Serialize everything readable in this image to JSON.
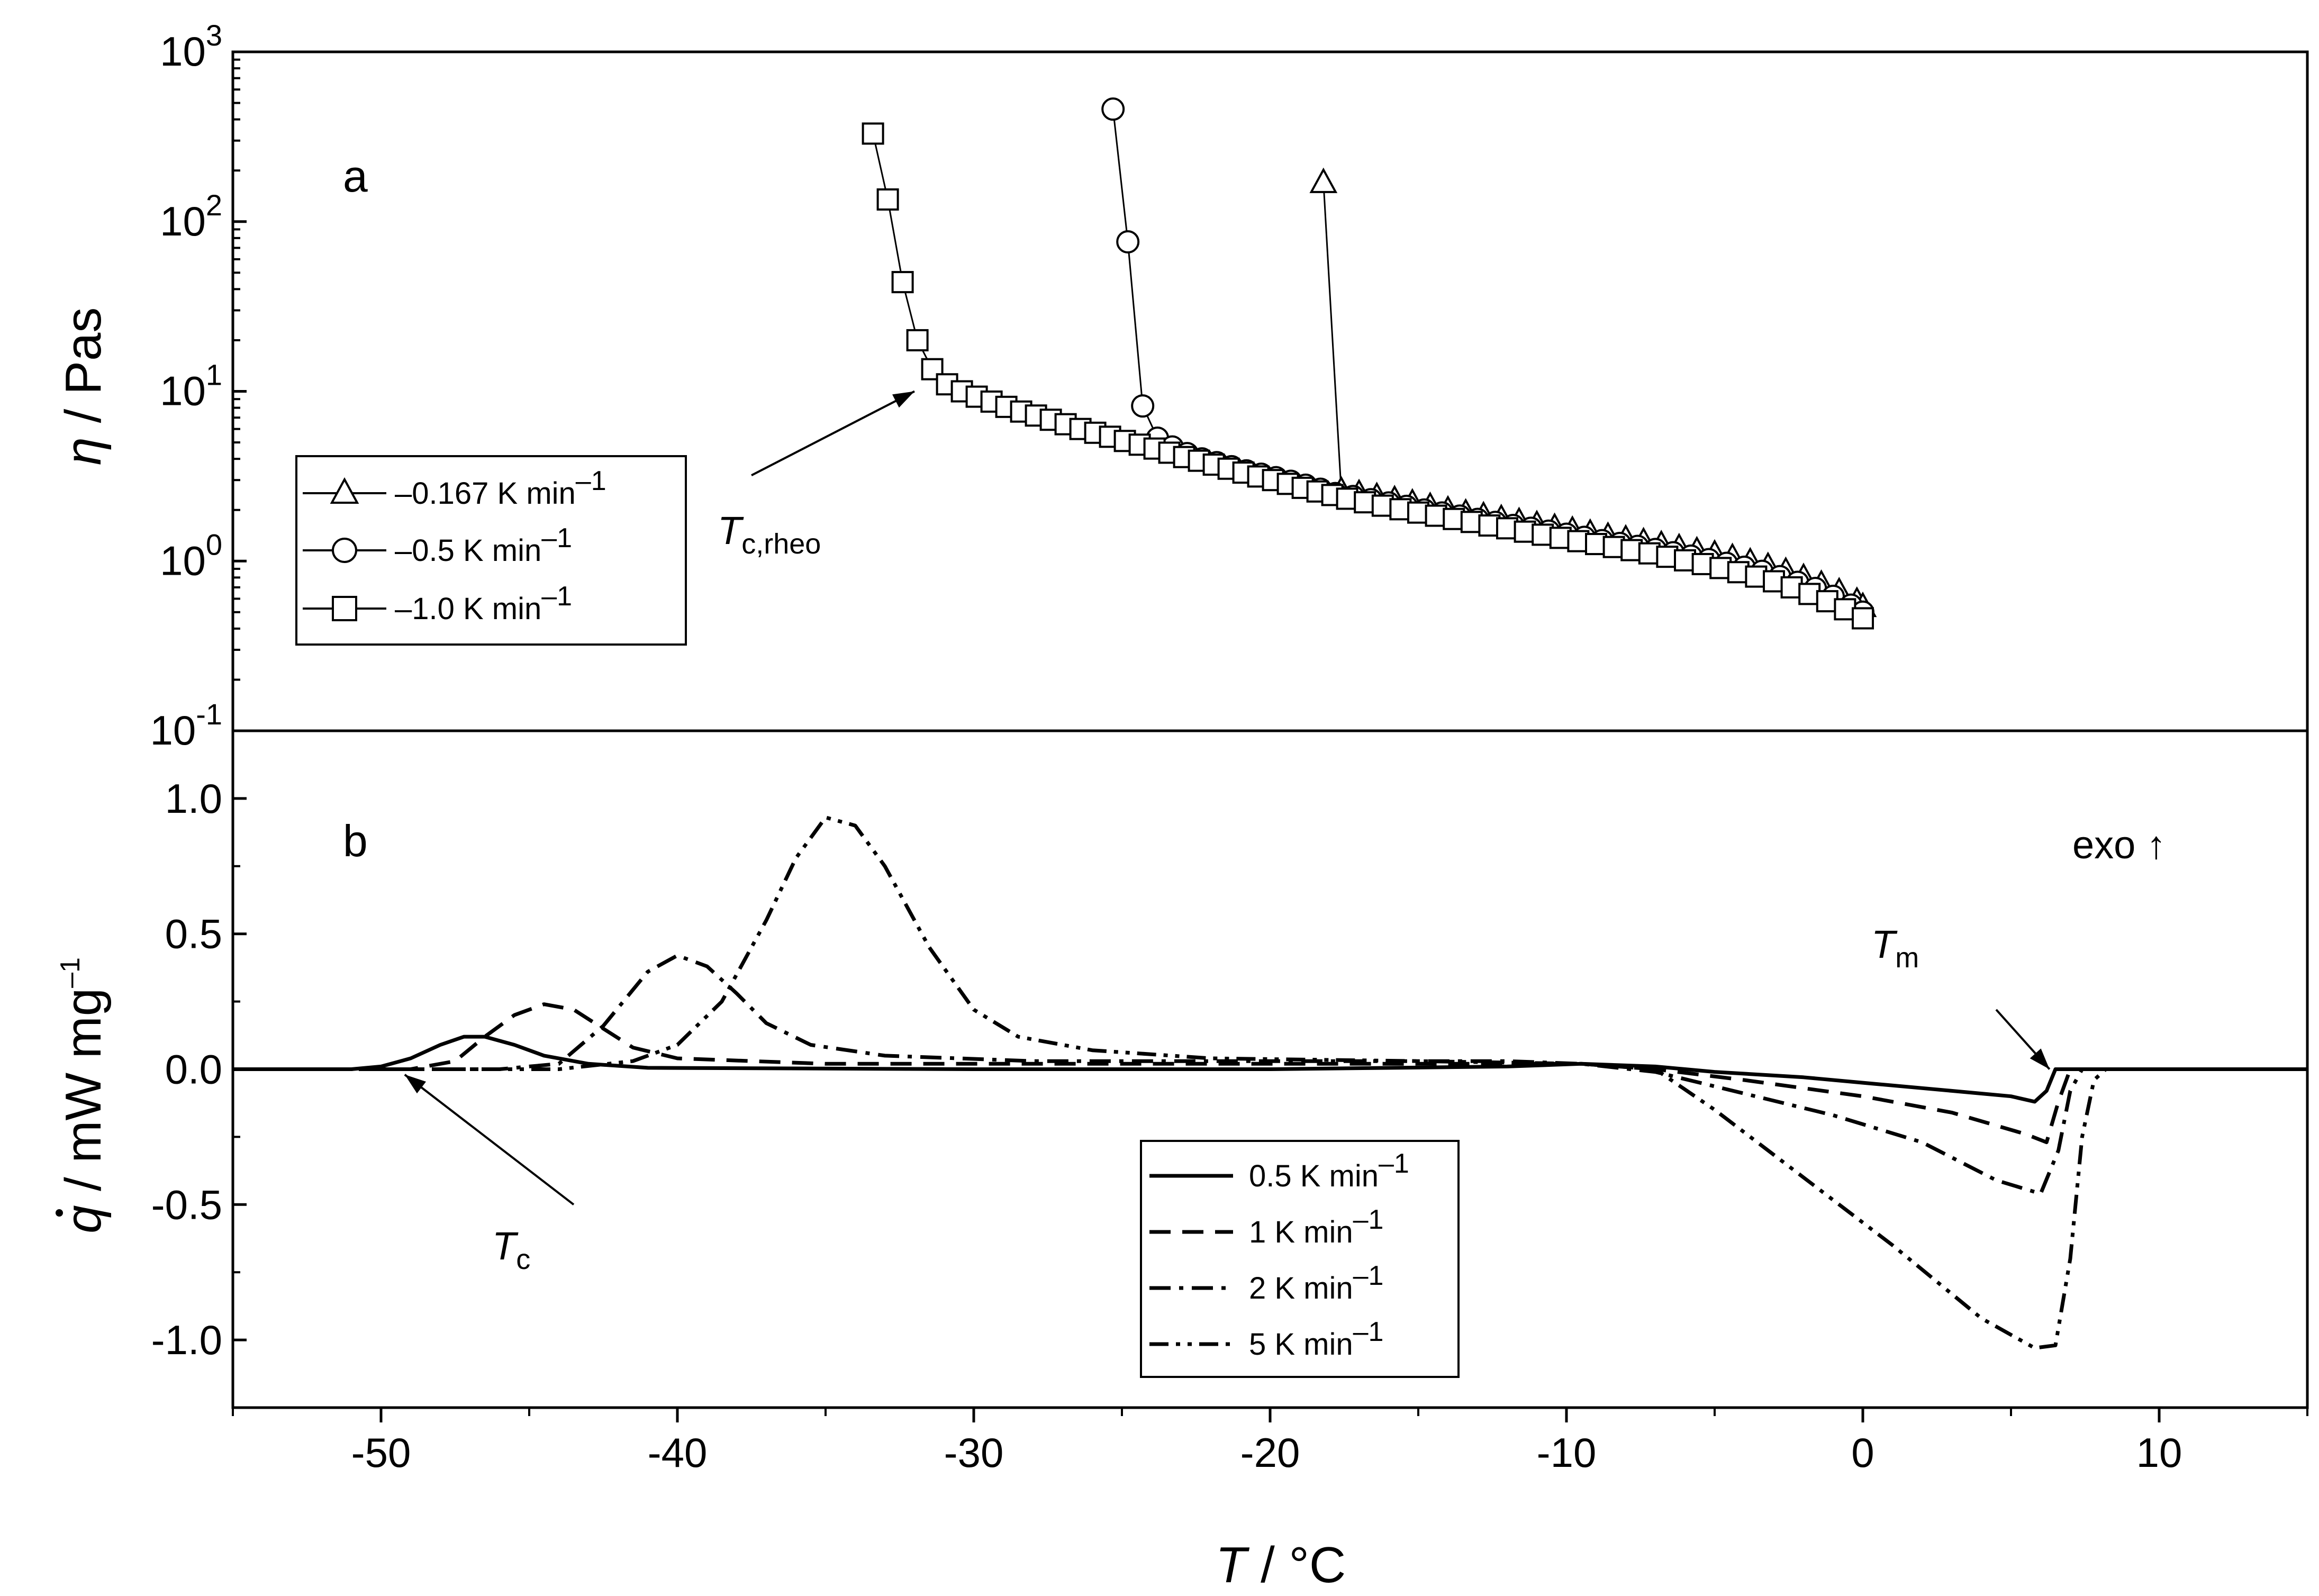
{
  "chart_data": [
    {
      "id": "a",
      "type": "scatter",
      "panel_label": "a",
      "ylabel_symbol": "η",
      "ylabel_unit": " / Pas",
      "yscale": "log",
      "ylim": [
        0.1,
        1000
      ],
      "xlim": [
        -55,
        15
      ],
      "y_ticks": [
        {
          "base": "10",
          "exp": "-1",
          "value": 0.1
        },
        {
          "base": "10",
          "exp": "0",
          "value": 1
        },
        {
          "base": "10",
          "exp": "1",
          "value": 10
        },
        {
          "base": "10",
          "exp": "2",
          "value": 100
        },
        {
          "base": "10",
          "exp": "3",
          "value": 1000
        }
      ],
      "annotations": [
        {
          "text": "T",
          "subscript": "c,rheo",
          "arrow_from": [
            -37.5,
            3.2
          ],
          "arrow_to": [
            -32.0,
            10.0
          ]
        }
      ],
      "series": [
        {
          "name": "–0.167 K min",
          "unit_exp": "–1",
          "marker": "triangle",
          "points": [
            [
              -18.2,
              170
            ],
            [
              -17.6,
              2.6
            ],
            [
              -17.0,
              2.5
            ],
            [
              -16.4,
              2.4
            ],
            [
              -15.8,
              2.3
            ],
            [
              -15.2,
              2.2
            ],
            [
              -14.6,
              2.1
            ],
            [
              -14.0,
              2.0
            ],
            [
              -13.4,
              1.92
            ],
            [
              -12.8,
              1.85
            ],
            [
              -12.2,
              1.78
            ],
            [
              -11.6,
              1.71
            ],
            [
              -11.0,
              1.64
            ],
            [
              -10.4,
              1.58
            ],
            [
              -9.8,
              1.52
            ],
            [
              -9.2,
              1.46
            ],
            [
              -8.6,
              1.4
            ],
            [
              -8.0,
              1.35
            ],
            [
              -7.4,
              1.3
            ],
            [
              -6.8,
              1.25
            ],
            [
              -6.2,
              1.2
            ],
            [
              -5.6,
              1.15
            ],
            [
              -5.0,
              1.1
            ],
            [
              -4.4,
              1.05
            ],
            [
              -3.8,
              0.99
            ],
            [
              -3.2,
              0.93
            ],
            [
              -2.6,
              0.87
            ],
            [
              -2.0,
              0.8
            ],
            [
              -1.4,
              0.73
            ],
            [
              -0.8,
              0.66
            ],
            [
              -0.2,
              0.58
            ],
            [
              0.0,
              0.54
            ]
          ]
        },
        {
          "name": "–0.5 K min",
          "unit_exp": "–1",
          "marker": "circle",
          "points": [
            [
              -25.3,
              460
            ],
            [
              -24.8,
              76
            ],
            [
              -24.3,
              8.2
            ],
            [
              -23.8,
              5.3
            ],
            [
              -23.3,
              4.7
            ],
            [
              -22.8,
              4.3
            ],
            [
              -22.3,
              4.0
            ],
            [
              -21.8,
              3.8
            ],
            [
              -21.3,
              3.6
            ],
            [
              -20.8,
              3.4
            ],
            [
              -20.3,
              3.25
            ],
            [
              -19.8,
              3.1
            ],
            [
              -19.3,
              2.95
            ],
            [
              -18.8,
              2.8
            ],
            [
              -18.3,
              2.65
            ],
            [
              -17.8,
              2.5
            ],
            [
              -17.2,
              2.4
            ],
            [
              -16.6,
              2.3
            ],
            [
              -16.0,
              2.2
            ],
            [
              -15.4,
              2.1
            ],
            [
              -14.8,
              2.0
            ],
            [
              -14.2,
              1.92
            ],
            [
              -13.6,
              1.84
            ],
            [
              -13.0,
              1.76
            ],
            [
              -12.4,
              1.69
            ],
            [
              -11.8,
              1.62
            ],
            [
              -11.2,
              1.56
            ],
            [
              -10.6,
              1.5
            ],
            [
              -10.0,
              1.44
            ],
            [
              -9.4,
              1.38
            ],
            [
              -8.8,
              1.32
            ],
            [
              -8.2,
              1.27
            ],
            [
              -7.6,
              1.22
            ],
            [
              -7.0,
              1.17
            ],
            [
              -6.4,
              1.12
            ],
            [
              -5.8,
              1.07
            ],
            [
              -5.2,
              1.02
            ],
            [
              -4.6,
              0.97
            ],
            [
              -4.0,
              0.92
            ],
            [
              -3.4,
              0.87
            ],
            [
              -2.8,
              0.81
            ],
            [
              -2.2,
              0.75
            ],
            [
              -1.6,
              0.69
            ],
            [
              -1.0,
              0.62
            ],
            [
              -0.4,
              0.55
            ],
            [
              0.0,
              0.5
            ]
          ]
        },
        {
          "name": "–1.0 K min",
          "unit_exp": "–1",
          "marker": "square",
          "points": [
            [
              -33.4,
              330
            ],
            [
              -32.9,
              135
            ],
            [
              -32.4,
              44
            ],
            [
              -31.9,
              20
            ],
            [
              -31.4,
              13.5
            ],
            [
              -30.9,
              11.0
            ],
            [
              -30.4,
              10.0
            ],
            [
              -29.9,
              9.3
            ],
            [
              -29.4,
              8.7
            ],
            [
              -28.9,
              8.1
            ],
            [
              -28.4,
              7.6
            ],
            [
              -27.9,
              7.2
            ],
            [
              -27.4,
              6.8
            ],
            [
              -26.9,
              6.4
            ],
            [
              -26.4,
              6.0
            ],
            [
              -25.9,
              5.7
            ],
            [
              -25.4,
              5.4
            ],
            [
              -24.9,
              5.1
            ],
            [
              -24.4,
              4.85
            ],
            [
              -23.9,
              4.6
            ],
            [
              -23.4,
              4.35
            ],
            [
              -22.9,
              4.1
            ],
            [
              -22.4,
              3.9
            ],
            [
              -21.9,
              3.7
            ],
            [
              -21.4,
              3.5
            ],
            [
              -20.9,
              3.32
            ],
            [
              -20.4,
              3.15
            ],
            [
              -19.9,
              3.0
            ],
            [
              -19.4,
              2.85
            ],
            [
              -18.9,
              2.7
            ],
            [
              -18.4,
              2.57
            ],
            [
              -17.9,
              2.45
            ],
            [
              -17.4,
              2.33
            ],
            [
              -16.8,
              2.22
            ],
            [
              -16.2,
              2.12
            ],
            [
              -15.6,
              2.02
            ],
            [
              -15.0,
              1.93
            ],
            [
              -14.4,
              1.85
            ],
            [
              -13.8,
              1.77
            ],
            [
              -13.2,
              1.7
            ],
            [
              -12.6,
              1.62
            ],
            [
              -12.0,
              1.56
            ],
            [
              -11.4,
              1.49
            ],
            [
              -10.8,
              1.43
            ],
            [
              -10.2,
              1.37
            ],
            [
              -9.6,
              1.31
            ],
            [
              -9.0,
              1.26
            ],
            [
              -8.4,
              1.21
            ],
            [
              -7.8,
              1.16
            ],
            [
              -7.2,
              1.11
            ],
            [
              -6.6,
              1.06
            ],
            [
              -6.0,
              1.01
            ],
            [
              -5.4,
              0.96
            ],
            [
              -4.8,
              0.91
            ],
            [
              -4.2,
              0.86
            ],
            [
              -3.6,
              0.81
            ],
            [
              -3.0,
              0.76
            ],
            [
              -2.4,
              0.7
            ],
            [
              -1.8,
              0.64
            ],
            [
              -1.2,
              0.58
            ],
            [
              -0.6,
              0.52
            ],
            [
              0.0,
              0.46
            ]
          ]
        }
      ]
    },
    {
      "id": "b",
      "type": "line",
      "panel_label": "b",
      "ylabel_symbol": "q",
      "ylabel_unit": " / mW mg",
      "ylabel_exp": "–1",
      "ylim": [
        -1.25,
        1.25
      ],
      "xlim": [
        -55,
        15
      ],
      "xlabel_symbol": "T",
      "xlabel_unit": " / °C",
      "x_ticks": [
        "-50",
        "-40",
        "-30",
        "-20",
        "-10",
        "0",
        "10"
      ],
      "x_tick_values": [
        -50,
        -40,
        -30,
        -20,
        -10,
        0,
        10
      ],
      "y_ticks": [
        "-1.0",
        "-0.5",
        "0.0",
        "0.5",
        "1.0"
      ],
      "y_tick_values": [
        -1.0,
        -0.5,
        0.0,
        0.5,
        1.0
      ],
      "annotations": [
        {
          "text": "exo ↑"
        },
        {
          "text": "T",
          "subscript": "m",
          "arrow_from": [
            4.5,
            0.22
          ],
          "arrow_to": [
            6.3,
            0.0
          ]
        },
        {
          "text": "T",
          "subscript": "c",
          "arrow_from": [
            -43.5,
            -0.5
          ],
          "arrow_to": [
            -49.2,
            -0.02
          ]
        }
      ],
      "series": [
        {
          "name": "0.5 K min",
          "unit_exp": "–1",
          "dash": "solid",
          "points": [
            [
              -55,
              0
            ],
            [
              -51,
              0.0
            ],
            [
              -50,
              0.01
            ],
            [
              -49,
              0.04
            ],
            [
              -48,
              0.09
            ],
            [
              -47.2,
              0.12
            ],
            [
              -46.5,
              0.12
            ],
            [
              -45.5,
              0.09
            ],
            [
              -44.5,
              0.05
            ],
            [
              -43,
              0.02
            ],
            [
              -41,
              0.005
            ],
            [
              -30,
              0.0
            ],
            [
              -20,
              0.0
            ],
            [
              -12,
              0.01
            ],
            [
              -9.5,
              0.02
            ],
            [
              -7,
              0.01
            ],
            [
              -5,
              -0.01
            ],
            [
              -2,
              -0.03
            ],
            [
              0,
              -0.05
            ],
            [
              3,
              -0.08
            ],
            [
              5,
              -0.1
            ],
            [
              5.8,
              -0.12
            ],
            [
              6.2,
              -0.08
            ],
            [
              6.5,
              0.0
            ],
            [
              15,
              0.0
            ]
          ]
        },
        {
          "name": "1 K min",
          "unit_exp": "–1",
          "dash": "dash",
          "points": [
            [
              -55,
              0
            ],
            [
              -49,
              0.0
            ],
            [
              -47.5,
              0.03
            ],
            [
              -46.5,
              0.12
            ],
            [
              -45.5,
              0.2
            ],
            [
              -44.5,
              0.24
            ],
            [
              -43.5,
              0.22
            ],
            [
              -42.5,
              0.15
            ],
            [
              -41.5,
              0.08
            ],
            [
              -40,
              0.04
            ],
            [
              -35,
              0.02
            ],
            [
              -25,
              0.02
            ],
            [
              -15,
              0.02
            ],
            [
              -9.5,
              0.02
            ],
            [
              -7,
              0.0
            ],
            [
              -4,
              -0.04
            ],
            [
              0,
              -0.1
            ],
            [
              3,
              -0.16
            ],
            [
              5.5,
              -0.24
            ],
            [
              6.2,
              -0.27
            ],
            [
              6.6,
              -0.12
            ],
            [
              7.0,
              0.0
            ],
            [
              15,
              0.0
            ]
          ]
        },
        {
          "name": "2 K min",
          "unit_exp": "–1",
          "dash": "dashdot",
          "points": [
            [
              -55,
              0
            ],
            [
              -46,
              0.0
            ],
            [
              -44,
              0.02
            ],
            [
              -42.5,
              0.16
            ],
            [
              -41,
              0.36
            ],
            [
              -40,
              0.42
            ],
            [
              -39,
              0.38
            ],
            [
              -38,
              0.28
            ],
            [
              -37,
              0.17
            ],
            [
              -35.5,
              0.09
            ],
            [
              -33,
              0.05
            ],
            [
              -28,
              0.03
            ],
            [
              -20,
              0.03
            ],
            [
              -12,
              0.03
            ],
            [
              -9.5,
              0.02
            ],
            [
              -7,
              -0.01
            ],
            [
              -4,
              -0.09
            ],
            [
              -1,
              -0.17
            ],
            [
              2,
              -0.27
            ],
            [
              4.5,
              -0.41
            ],
            [
              6.0,
              -0.46
            ],
            [
              6.6,
              -0.3
            ],
            [
              7.0,
              -0.08
            ],
            [
              7.4,
              0.0
            ],
            [
              15,
              0.0
            ]
          ]
        },
        {
          "name": "5 K min",
          "unit_exp": "–1",
          "dash": "dashdotdot",
          "points": [
            [
              -55,
              0
            ],
            [
              -44,
              0.0
            ],
            [
              -41.5,
              0.03
            ],
            [
              -40,
              0.09
            ],
            [
              -38.5,
              0.25
            ],
            [
              -37,
              0.55
            ],
            [
              -36,
              0.78
            ],
            [
              -35,
              0.93
            ],
            [
              -34,
              0.9
            ],
            [
              -33,
              0.75
            ],
            [
              -31.5,
              0.45
            ],
            [
              -30,
              0.22
            ],
            [
              -28.5,
              0.12
            ],
            [
              -26,
              0.07
            ],
            [
              -22,
              0.04
            ],
            [
              -15,
              0.03
            ],
            [
              -9.5,
              0.02
            ],
            [
              -7,
              0.0
            ],
            [
              -5,
              -0.15
            ],
            [
              -2,
              -0.4
            ],
            [
              1,
              -0.65
            ],
            [
              4,
              -0.92
            ],
            [
              5.8,
              -1.03
            ],
            [
              6.5,
              -1.02
            ],
            [
              7.0,
              -0.7
            ],
            [
              7.4,
              -0.25
            ],
            [
              7.8,
              -0.04
            ],
            [
              8.2,
              0.0
            ],
            [
              15,
              0.0
            ]
          ]
        }
      ]
    }
  ]
}
